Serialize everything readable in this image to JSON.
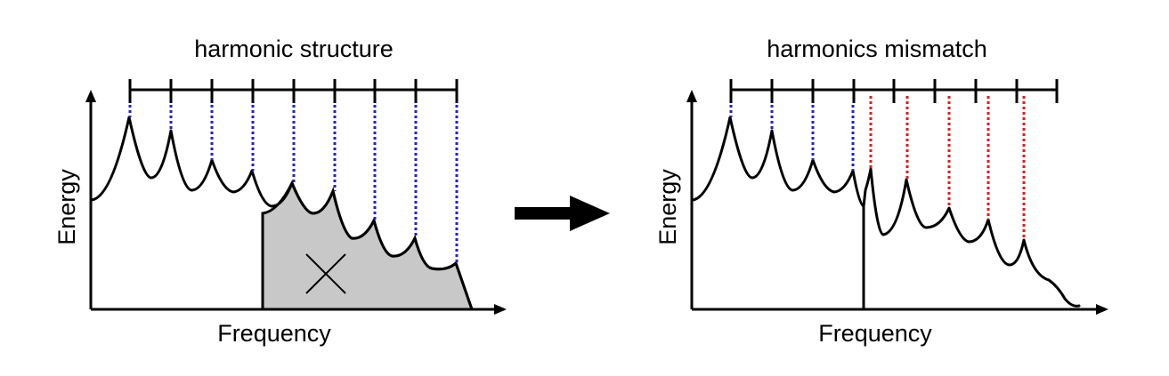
{
  "left_panel": {
    "title": "harmonic structure",
    "x_axis_label": "Frequency",
    "y_axis_label": "Energy"
  },
  "right_panel": {
    "title": "harmonics mismatch",
    "x_axis_label": "Frequency",
    "y_axis_label": "Energy"
  },
  "colors": {
    "matched_harmonic": "#1f1fd6",
    "mismatched_harmonic": "#e01b1b",
    "masked_region": "#c8c8c8"
  },
  "icons": [
    "arrow-right-icon",
    "cross-mark-icon"
  ]
}
